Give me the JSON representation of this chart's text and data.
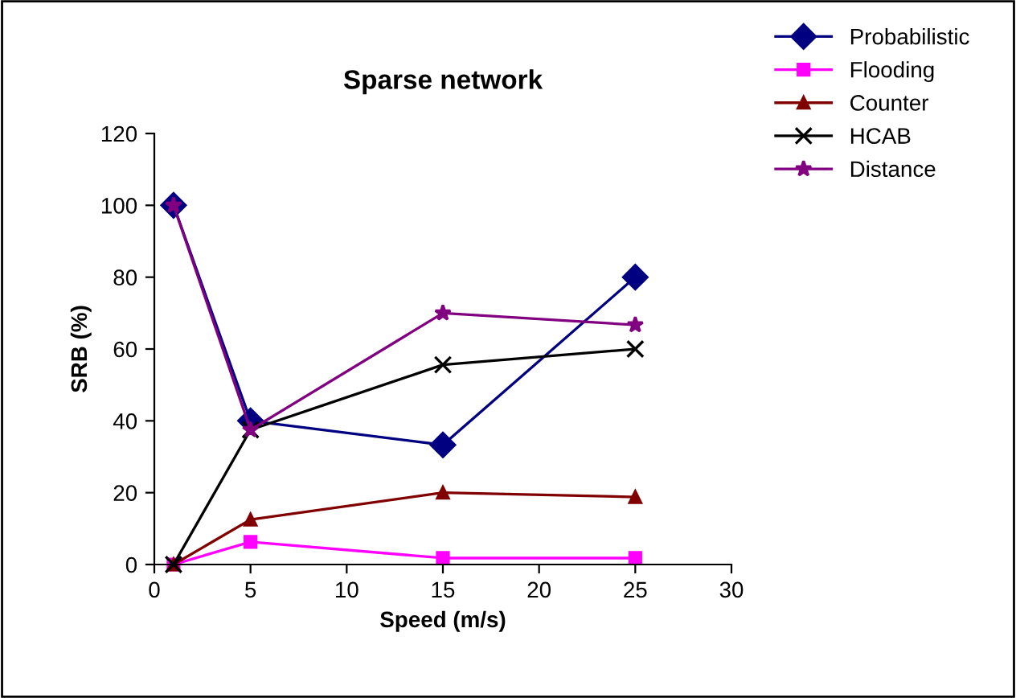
{
  "chart_data": {
    "type": "line",
    "title": "Sparse network",
    "xlabel": "Speed (m/s)",
    "ylabel": "SRB (%)",
    "x": [
      1,
      5,
      15,
      25
    ],
    "series": [
      {
        "name": "Probabilistic",
        "color": "#000080",
        "marker": "diamond",
        "values": [
          100,
          40,
          33.3,
          80
        ]
      },
      {
        "name": "Flooding",
        "color": "#ff00ff",
        "marker": "square",
        "values": [
          0,
          6.3,
          1.8,
          1.8
        ]
      },
      {
        "name": "Counter",
        "color": "#800000",
        "marker": "triangle",
        "values": [
          0,
          12.5,
          20,
          18.8
        ]
      },
      {
        "name": "HCAB",
        "color": "#000000",
        "marker": "cross",
        "values": [
          0,
          37.5,
          55.6,
          60
        ]
      },
      {
        "name": "Distance",
        "color": "#800080",
        "marker": "star",
        "values": [
          100,
          37.5,
          70,
          66.7
        ]
      }
    ],
    "xlim": [
      0,
      30
    ],
    "xticks": [
      0,
      5,
      10,
      15,
      20,
      25,
      30
    ],
    "ylim": [
      0,
      120
    ],
    "yticks": [
      0,
      20,
      40,
      60,
      80,
      100,
      120
    ],
    "grid": false,
    "legend": "top right",
    "line_style": "solid"
  }
}
